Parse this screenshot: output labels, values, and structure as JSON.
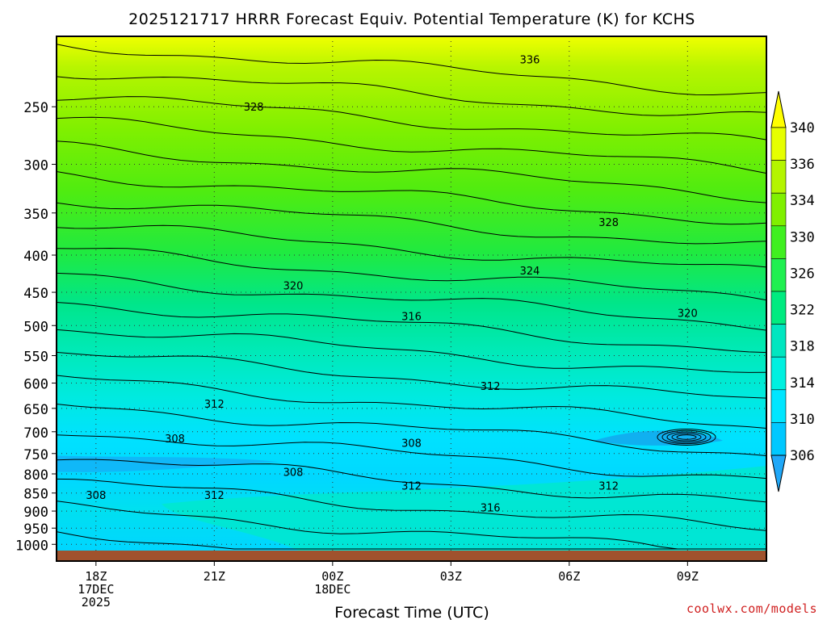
{
  "chart_data": {
    "type": "heatmap",
    "title": "2025121717 HRRR Forecast Equiv. Potential Temperature (K) for KCHS",
    "xlabel": "Forecast Time (UTC)",
    "ylabel": "",
    "x_ticks": [
      {
        "value": "2025-12-17 18Z",
        "lines": [
          "18Z",
          "17DEC",
          "2025"
        ]
      },
      {
        "value": "2025-12-17 21Z",
        "lines": [
          "21Z"
        ]
      },
      {
        "value": "2025-12-18 00Z",
        "lines": [
          "00Z",
          "18DEC"
        ]
      },
      {
        "value": "2025-12-18 03Z",
        "lines": [
          "03Z"
        ]
      },
      {
        "value": "2025-12-18 06Z",
        "lines": [
          "06Z"
        ]
      },
      {
        "value": "2025-12-18 09Z",
        "lines": [
          "09Z"
        ]
      }
    ],
    "x_range": [
      "2025-12-17 17Z",
      "2025-12-18 11Z"
    ],
    "y_ticks": [
      250,
      300,
      350,
      400,
      450,
      500,
      550,
      600,
      650,
      700,
      750,
      800,
      850,
      900,
      950,
      1000
    ],
    "y_range": [
      200,
      1020
    ],
    "y_scale": "log",
    "y_inverted": true,
    "grid": true,
    "colorbar": {
      "position": "right",
      "labels": [
        306,
        310,
        314,
        318,
        322,
        326,
        330,
        334,
        336,
        340
      ],
      "colors": [
        "#00c8ff",
        "#00e6ff",
        "#00f0e0",
        "#00e6c0",
        "#00eb80",
        "#20f050",
        "#40f020",
        "#80f000",
        "#b4f500",
        "#e6ff00",
        "#ffff00"
      ]
    },
    "contour_labels": [
      {
        "time": "2025-12-18 05Z",
        "pressure": 215,
        "value": "336"
      },
      {
        "time": "2025-12-17 22Z",
        "pressure": 250,
        "value": "328"
      },
      {
        "time": "2025-12-18 07Z",
        "pressure": 360,
        "value": "328"
      },
      {
        "time": "2025-12-18 05Z",
        "pressure": 420,
        "value": "324"
      },
      {
        "time": "2025-12-17 23Z",
        "pressure": 440,
        "value": "320"
      },
      {
        "time": "2025-12-18 09Z",
        "pressure": 480,
        "value": "320"
      },
      {
        "time": "2025-12-18 02Z",
        "pressure": 485,
        "value": "316"
      },
      {
        "time": "2025-12-18 04Z",
        "pressure": 605,
        "value": "312"
      },
      {
        "time": "2025-12-17 21Z",
        "pressure": 640,
        "value": "312"
      },
      {
        "time": "2025-12-17 20Z",
        "pressure": 715,
        "value": "308"
      },
      {
        "time": "2025-12-18 02Z",
        "pressure": 725,
        "value": "308"
      },
      {
        "time": "2025-12-17 23Z",
        "pressure": 795,
        "value": "308"
      },
      {
        "time": "2025-12-17 18Z",
        "pressure": 855,
        "value": "308"
      },
      {
        "time": "2025-12-17 21Z",
        "pressure": 855,
        "value": "312"
      },
      {
        "time": "2025-12-18 02Z",
        "pressure": 830,
        "value": "312"
      },
      {
        "time": "2025-12-18 07Z",
        "pressure": 830,
        "value": "312"
      },
      {
        "time": "2025-12-18 04Z",
        "pressure": 890,
        "value": "316"
      }
    ],
    "contour_interval": 2,
    "terrain_color": "#a0522d"
  },
  "credit": "coolwx.com/models"
}
